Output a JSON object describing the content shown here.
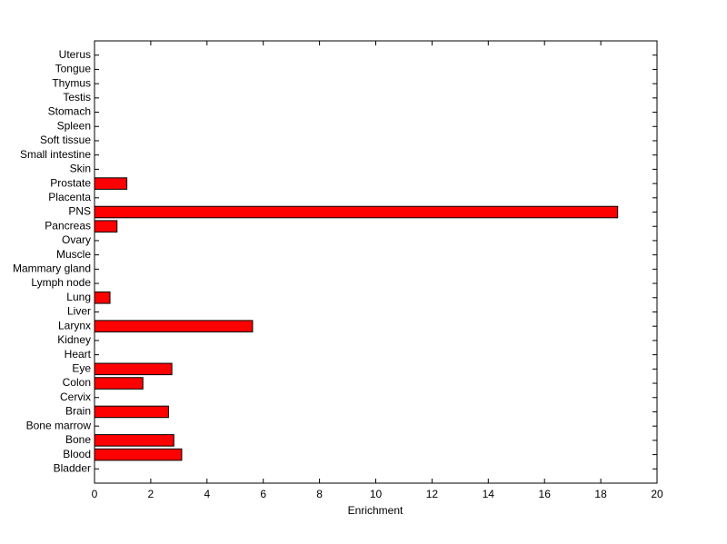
{
  "chart_data": {
    "type": "barh",
    "xlabel": "Enrichment",
    "categories": [
      "Bladder",
      "Blood",
      "Bone",
      "Bone marrow",
      "Brain",
      "Cervix",
      "Colon",
      "Eye",
      "Heart",
      "Kidney",
      "Larynx",
      "Liver",
      "Lung",
      "Lymph node",
      "Mammary gland",
      "Muscle",
      "Ovary",
      "Pancreas",
      "PNS",
      "Placenta",
      "Prostate",
      "Skin",
      "Small intestine",
      "Soft tissue",
      "Spleen",
      "Stomach",
      "Testis",
      "Thymus",
      "Tongue",
      "Uterus"
    ],
    "values": [
      0,
      3.1,
      2.82,
      0,
      2.63,
      0,
      1.72,
      2.75,
      0,
      0,
      5.62,
      0,
      0.55,
      0,
      0,
      0,
      0,
      0.8,
      18.6,
      0,
      1.15,
      0,
      0,
      0,
      0,
      0,
      0,
      0,
      0,
      0
    ],
    "color": "#ff0000",
    "xlim": [
      0,
      20
    ],
    "xticks": [
      0,
      2,
      4,
      6,
      8,
      10,
      12,
      14,
      16,
      18,
      20
    ]
  }
}
